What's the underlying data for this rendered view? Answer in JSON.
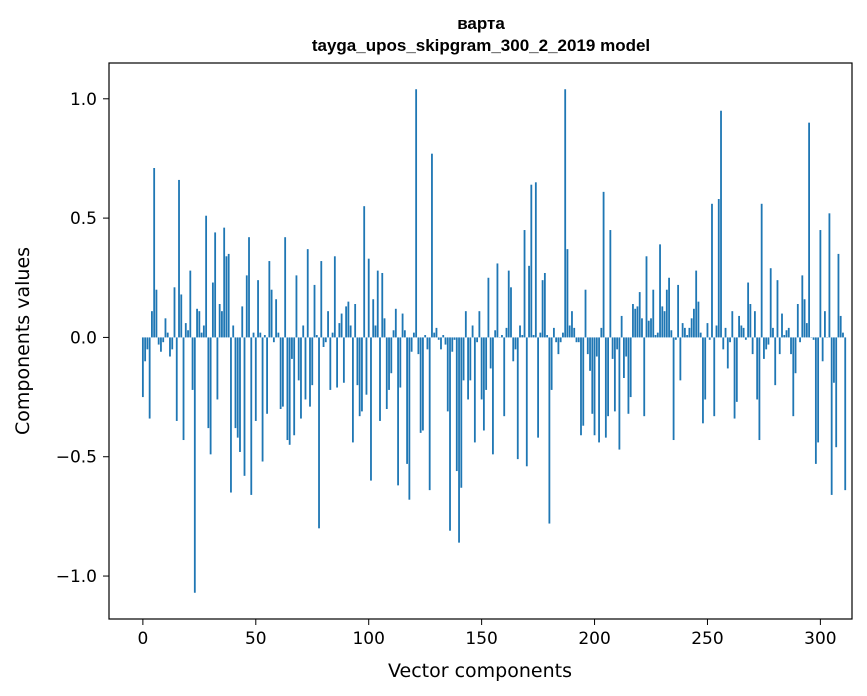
{
  "chart_data": {
    "type": "bar",
    "title": "варта",
    "subtitle": "tayga_upos_skipgram_300_2_2019 model",
    "xlabel": "Vector components",
    "ylabel": "Components values",
    "xlim": [
      -15,
      314
    ],
    "ylim": [
      -1.18,
      1.15
    ],
    "xticks": [
      0,
      50,
      100,
      150,
      200,
      250,
      300
    ],
    "yticks": [
      -1.0,
      -0.5,
      0.0,
      0.5,
      1.0
    ],
    "xtick_labels": [
      "0",
      "50",
      "100",
      "150",
      "200",
      "250",
      "300"
    ],
    "ytick_labels": [
      "−1.0",
      "−0.5",
      "0.0",
      "0.5",
      "1.0"
    ],
    "grid": false,
    "bar_color": "#1f77b4",
    "values": [
      -0.25,
      -0.1,
      -0.05,
      -0.34,
      0.11,
      0.71,
      0.2,
      -0.03,
      -0.06,
      -0.02,
      0.08,
      0.02,
      -0.08,
      -0.05,
      0.21,
      -0.35,
      0.66,
      0.18,
      -0.43,
      0.06,
      0.03,
      0.28,
      -0.22,
      -1.07,
      0.12,
      0.11,
      0.02,
      0.05,
      0.51,
      -0.38,
      -0.49,
      0.23,
      0.44,
      -0.26,
      0.14,
      0.11,
      0.46,
      0.34,
      0.35,
      -0.65,
      0.05,
      -0.38,
      -0.42,
      -0.48,
      0.13,
      -0.58,
      0.26,
      0.42,
      -0.66,
      0.02,
      -0.35,
      0.24,
      0.02,
      -0.52,
      0.01,
      -0.32,
      0.32,
      0.2,
      -0.02,
      0.16,
      0.02,
      -0.3,
      -0.29,
      0.42,
      -0.43,
      -0.45,
      -0.09,
      -0.41,
      0.26,
      -0.18,
      -0.34,
      0.05,
      -0.26,
      0.37,
      -0.29,
      -0.2,
      0.22,
      0.01,
      -0.8,
      0.32,
      -0.04,
      -0.02,
      0.11,
      -0.22,
      0.02,
      0.34,
      -0.21,
      0.06,
      0.1,
      -0.19,
      0.13,
      0.15,
      0.05,
      -0.44,
      0.14,
      -0.2,
      -0.33,
      -0.31,
      0.55,
      -0.24,
      0.33,
      -0.6,
      0.16,
      0.05,
      0.28,
      -0.35,
      0.27,
      0.08,
      -0.3,
      -0.22,
      -0.15,
      0.03,
      0.12,
      -0.62,
      -0.21,
      0.1,
      0.03,
      -0.53,
      -0.68,
      -0.06,
      0.02,
      1.04,
      -0.07,
      -0.4,
      -0.39,
      0.01,
      -0.05,
      -0.64,
      0.77,
      0.02,
      0.04,
      -0.01,
      -0.05,
      0.01,
      -0.03,
      -0.31,
      -0.81,
      -0.06,
      -0.01,
      -0.56,
      -0.86,
      -0.63,
      -0.18,
      0.11,
      -0.26,
      -0.18,
      0.05,
      -0.44,
      -0.02,
      0.11,
      -0.26,
      -0.39,
      -0.22,
      0.25,
      -0.13,
      -0.49,
      0.03,
      0.31,
      0.0,
      0.01,
      -0.33,
      0.04,
      0.28,
      0.21,
      -0.1,
      -0.05,
      -0.51,
      0.05,
      0.01,
      0.45,
      -0.54,
      0.3,
      0.64,
      0.01,
      0.65,
      -0.42,
      0.02,
      0.24,
      0.27,
      0.01,
      -0.78,
      -0.22,
      0.04,
      -0.02,
      -0.07,
      -0.02,
      0.02,
      1.04,
      0.37,
      0.05,
      0.11,
      0.04,
      -0.02,
      -0.02,
      -0.41,
      -0.37,
      0.2,
      -0.07,
      -0.14,
      -0.32,
      -0.41,
      -0.08,
      -0.44,
      0.04,
      0.61,
      -0.42,
      -0.33,
      0.45,
      -0.09,
      -0.31,
      -0.05,
      -0.47,
      0.09,
      -0.17,
      -0.08,
      -0.32,
      -0.25,
      0.14,
      0.12,
      0.13,
      0.19,
      0.08,
      -0.33,
      0.34,
      0.07,
      0.08,
      0.2,
      0.01,
      0.02,
      0.39,
      0.13,
      0.11,
      0.2,
      0.25,
      0.03,
      -0.43,
      -0.01,
      0.22,
      -0.18,
      0.06,
      0.04,
      0.01,
      0.04,
      0.08,
      0.12,
      0.28,
      0.15,
      0.02,
      -0.36,
      -0.26,
      0.06,
      -0.01,
      0.56,
      -0.33,
      0.05,
      0.58,
      0.95,
      -0.05,
      0.04,
      -0.13,
      -0.02,
      0.11,
      -0.34,
      -0.27,
      0.09,
      0.05,
      0.04,
      -0.01,
      0.23,
      0.14,
      -0.07,
      0.11,
      -0.26,
      -0.43,
      0.56,
      -0.09,
      -0.05,
      -0.03,
      0.29,
      0.04,
      -0.2,
      0.24,
      -0.07,
      0.1,
      0.01,
      0.03,
      0.04,
      -0.07,
      -0.33,
      -0.15,
      0.14,
      -0.02,
      0.26,
      0.16,
      0.06,
      0.9,
      0.0,
      -0.01,
      -0.53,
      -0.44,
      0.45,
      -0.1,
      0.11,
      0.0,
      0.52,
      -0.66,
      -0.19,
      -0.46,
      0.35,
      0.09,
      0.02,
      -0.64
    ]
  }
}
